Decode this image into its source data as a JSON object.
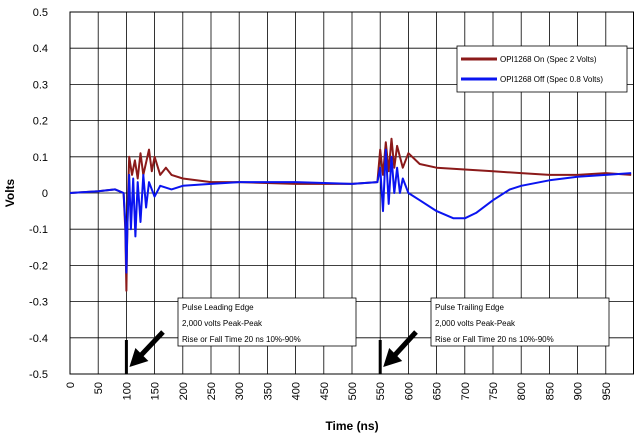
{
  "chart_data": {
    "type": "line",
    "xlabel": "Time (ns)",
    "ylabel": "Volts",
    "xlim": [
      0,
      1000
    ],
    "ylim": [
      -0.5,
      0.5
    ],
    "x_ticks": [
      "0",
      "50",
      "100",
      "150",
      "200",
      "250",
      "300",
      "350",
      "400",
      "450",
      "500",
      "550",
      "600",
      "650",
      "700",
      "750",
      "800",
      "850",
      "900",
      "950"
    ],
    "y_ticks": [
      "0.5",
      "0.4",
      "0.3",
      "0.2",
      "0.1",
      "0",
      "-0.1",
      "-0.2",
      "-0.3",
      "-0.4",
      "-0.5"
    ],
    "grid": true,
    "legend_position": "top-right",
    "series": [
      {
        "name": "OPI1268 On (Spec 2 Volts)",
        "color": "#8B1A1A",
        "points": [
          [
            0,
            0.0
          ],
          [
            50,
            0.005
          ],
          [
            80,
            0.01
          ],
          [
            95,
            0.0
          ],
          [
            98,
            -0.1
          ],
          [
            100,
            -0.27
          ],
          [
            101,
            -0.15
          ],
          [
            103,
            0.0
          ],
          [
            105,
            0.1
          ],
          [
            110,
            0.05
          ],
          [
            115,
            0.09
          ],
          [
            120,
            0.04
          ],
          [
            125,
            0.11
          ],
          [
            130,
            0.05
          ],
          [
            140,
            0.12
          ],
          [
            145,
            0.06
          ],
          [
            150,
            0.1
          ],
          [
            160,
            0.05
          ],
          [
            170,
            0.07
          ],
          [
            180,
            0.05
          ],
          [
            200,
            0.04
          ],
          [
            250,
            0.03
          ],
          [
            300,
            0.03
          ],
          [
            400,
            0.025
          ],
          [
            500,
            0.025
          ],
          [
            545,
            0.03
          ],
          [
            550,
            0.12
          ],
          [
            555,
            0.05
          ],
          [
            560,
            0.14
          ],
          [
            565,
            0.06
          ],
          [
            570,
            0.15
          ],
          [
            575,
            0.07
          ],
          [
            580,
            0.13
          ],
          [
            590,
            0.07
          ],
          [
            600,
            0.11
          ],
          [
            620,
            0.08
          ],
          [
            650,
            0.07
          ],
          [
            700,
            0.065
          ],
          [
            750,
            0.06
          ],
          [
            800,
            0.055
          ],
          [
            850,
            0.05
          ],
          [
            900,
            0.05
          ],
          [
            950,
            0.055
          ],
          [
            995,
            0.05
          ]
        ]
      },
      {
        "name": "OPI1268 Off (Spec 0.8 Volts)",
        "color": "#0A14F0",
        "points": [
          [
            0,
            0.0
          ],
          [
            50,
            0.005
          ],
          [
            80,
            0.01
          ],
          [
            95,
            0.0
          ],
          [
            98,
            -0.08
          ],
          [
            100,
            -0.22
          ],
          [
            102,
            -0.08
          ],
          [
            105,
            0.05
          ],
          [
            108,
            -0.1
          ],
          [
            112,
            0.04
          ],
          [
            116,
            -0.12
          ],
          [
            120,
            0.03
          ],
          [
            125,
            -0.08
          ],
          [
            130,
            0.05
          ],
          [
            135,
            -0.04
          ],
          [
            140,
            0.03
          ],
          [
            150,
            -0.01
          ],
          [
            160,
            0.02
          ],
          [
            180,
            0.01
          ],
          [
            200,
            0.02
          ],
          [
            250,
            0.025
          ],
          [
            300,
            0.03
          ],
          [
            400,
            0.03
          ],
          [
            500,
            0.025
          ],
          [
            545,
            0.03
          ],
          [
            550,
            0.07
          ],
          [
            555,
            -0.05
          ],
          [
            560,
            0.12
          ],
          [
            565,
            -0.03
          ],
          [
            570,
            0.1
          ],
          [
            575,
            0.0
          ],
          [
            580,
            0.07
          ],
          [
            585,
            0.0
          ],
          [
            590,
            0.04
          ],
          [
            600,
            0.0
          ],
          [
            620,
            -0.02
          ],
          [
            650,
            -0.05
          ],
          [
            680,
            -0.07
          ],
          [
            700,
            -0.07
          ],
          [
            720,
            -0.055
          ],
          [
            750,
            -0.02
          ],
          [
            780,
            0.01
          ],
          [
            800,
            0.02
          ],
          [
            850,
            0.035
          ],
          [
            900,
            0.045
          ],
          [
            950,
            0.05
          ],
          [
            995,
            0.055
          ]
        ]
      }
    ],
    "annotations": [
      {
        "lines": [
          "Pulse Leading Edge",
          "2,000 volts Peak-Peak",
          "Rise or Fall Time 20 ns 10%-90%"
        ],
        "x": 100
      },
      {
        "lines": [
          "Pulse Trailing Edge",
          "2,000 volts Peak-Peak",
          "Rise or Fall Time 20 ns 10%-90%"
        ],
        "x": 550
      }
    ]
  }
}
